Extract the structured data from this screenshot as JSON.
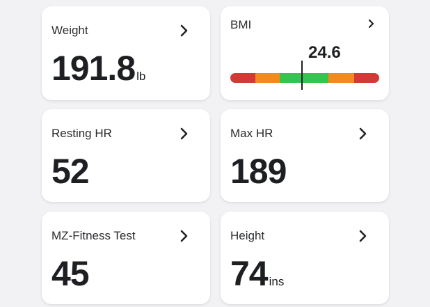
{
  "cards": {
    "weight": {
      "label": "Weight",
      "value": "191.8",
      "unit": "lb"
    },
    "bmi": {
      "label": "BMI",
      "value": "24.6",
      "scale": {
        "min": 15,
        "max": 35,
        "marker": 24.6
      },
      "segments": [
        {
          "name": "underweight-severe",
          "color": "#d23a35",
          "weight": 0.17
        },
        {
          "name": "underweight",
          "color": "#ef8b23",
          "weight": 0.16
        },
        {
          "name": "normal",
          "color": "#37c251",
          "weight": 0.33
        },
        {
          "name": "overweight",
          "color": "#ef8b23",
          "weight": 0.17
        },
        {
          "name": "obese",
          "color": "#d23a35",
          "weight": 0.17
        }
      ]
    },
    "resting_hr": {
      "label": "Resting HR",
      "value": "52"
    },
    "max_hr": {
      "label": "Max HR",
      "value": "189"
    },
    "mz_fitness": {
      "label": "MZ-Fitness Test",
      "value": "45"
    },
    "height": {
      "label": "Height",
      "value": "74",
      "unit": "ins"
    }
  },
  "icons": {
    "chevron": "chevron-right-icon"
  }
}
